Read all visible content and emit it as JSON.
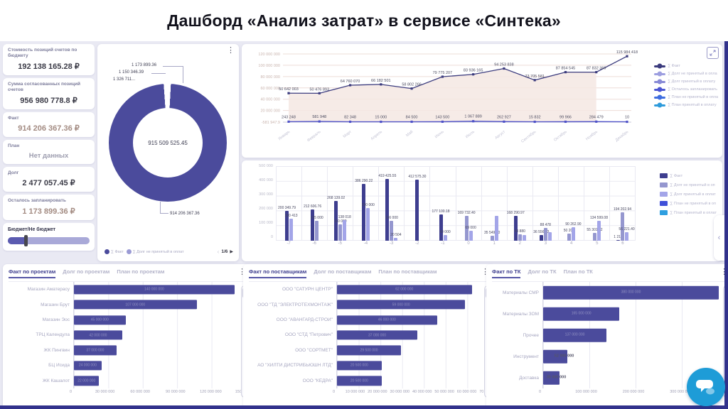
{
  "title": "Дашборд «Анализ затрат» в сервисе «Синтека»",
  "kpi_cards": [
    {
      "label": "Стоимость позиций счетов по бюджету",
      "value": "192 138 165.28 ₽",
      "tone": "dark"
    },
    {
      "label": "Сумма согласованных позиций счетов",
      "value": "956 980 778.8 ₽",
      "tone": "dark"
    },
    {
      "label": "Факт",
      "value": "914 206 367.36 ₽",
      "tone": "muted"
    },
    {
      "label": "План",
      "value": "Нет данных",
      "tone": "empty"
    },
    {
      "label": "Долг",
      "value": "2 477 057.45 ₽",
      "tone": "dark"
    },
    {
      "label": "Осталось запланировать",
      "value": "1 173 899.36 ₽",
      "tone": "muted"
    }
  ],
  "budget_slider": {
    "label": "Бюджет/Не бюджет",
    "position_pct": 22
  },
  "donut_card": {
    "pager": {
      "prev": "‹",
      "page": "1/6",
      "next": "▶"
    }
  },
  "chart_data": [
    {
      "name": "monthly-lines",
      "type": "line",
      "x": [
        "Январь",
        "Февраль",
        "Март",
        "Апрель",
        "Май",
        "Июнь",
        "Июль",
        "Август",
        "Сентябрь",
        "Октябрь",
        "Ноябрь",
        "Декабрь"
      ],
      "y_ticks": [
        "120 000 000",
        "100 000 000",
        "80 000 000",
        "60 000 000",
        "40 000 000",
        "20 000 000"
      ],
      "y_baseline_label": "-581 947.9",
      "ylim": [
        -581947.9,
        120000000
      ],
      "series": [
        {
          "name": "∑ Факт",
          "color": "#3c3c7e",
          "fill": "#f5e7e3",
          "values": [
            50642003,
            50476893,
            64760070,
            66182501,
            58802266,
            79775207,
            83936165,
            94253838,
            73705581,
            87854545,
            87832369,
            115984418
          ],
          "labels": [
            "50 642 003",
            "50 476 893",
            "64 760 070",
            "66 182 501",
            "58 802 266",
            "79 775 207",
            "83 936 165",
            "94 253 838",
            "73 705 581",
            "87 854 545",
            "87 832 369",
            "115 984 418"
          ]
        },
        {
          "name": "∑ План принятый в оплату",
          "color": "#4f52c8",
          "values": [
            243248,
            581948,
            82348,
            15000,
            84500,
            143500,
            1067889,
            262927,
            15832,
            99966,
            284479,
            10
          ],
          "labels": [
            "243 248",
            "581 948",
            "82 348",
            "15 000",
            "84 500",
            "143 500",
            "1 067 889",
            "262 927",
            "15 832",
            "99 966",
            "284 479",
            "10"
          ]
        }
      ],
      "legend": [
        {
          "label": "∑ Факт",
          "color": "#3c3c7e"
        },
        {
          "label": "∑ Долг не принятый в опла",
          "color": "#9d9fe0"
        },
        {
          "label": "∑ Долг принятый в оплату",
          "color": "#8789d6"
        },
        {
          "label": "∑ Осталось запланировать",
          "color": "#4b55d2"
        },
        {
          "label": "∑ План не принятый в опла",
          "color": "#3f6ee0"
        },
        {
          "label": "∑ План принятый в оплату",
          "color": "#2f9bdb"
        }
      ]
    },
    {
      "name": "monthly-bars",
      "type": "bar",
      "y_ticks": [
        "500 000",
        "400 000",
        "300 000",
        "200 000",
        "100 000",
        "0"
      ],
      "ylim": [
        0,
        500000
      ],
      "series": [
        {
          "name": "∑ Факт",
          "color": "#3e3e8f"
        },
        {
          "name": "∑ Долг не принятый в оп",
          "color": "#9597cf"
        },
        {
          "name": "∑ Долг принятый в оплат",
          "color": "#a3a5e8"
        },
        {
          "name": "∑ План не принятый в оп",
          "color": "#4050d8"
        },
        {
          "name": "∑ План принятый в оплат",
          "color": "#2f9fe0"
        }
      ],
      "groups": [
        {
          "cat": "-7",
          "bars": [
            {
              "s": 0,
              "v": 200349.79,
              "t": "200 349.79"
            },
            {
              "s": 2,
              "v": 150413,
              "t": "150 413"
            }
          ]
        },
        {
          "cat": "-6",
          "bars": [
            {
              "s": 0,
              "v": 212606.76,
              "t": "212 606.76"
            },
            {
              "s": 1,
              "v": 135000,
              "t": "135 000"
            }
          ]
        },
        {
          "cat": "-5",
          "bars": [
            {
              "s": 0,
              "v": 268139.02,
              "t": "268 139.02"
            },
            {
              "s": 1,
              "v": 110000,
              "t": "110 000"
            },
            {
              "s": 2,
              "v": 138018,
              "t": "138 018"
            }
          ]
        },
        {
          "cat": "-4",
          "bars": [
            {
              "s": 0,
              "v": 386290.22,
              "t": "386 290.22"
            },
            {
              "s": 2,
              "v": 220000,
              "t": "220 000"
            }
          ]
        },
        {
          "cat": "-3",
          "bars": [
            {
              "s": 0,
              "v": 419425.55,
              "t": "419 425.55"
            },
            {
              "s": 1,
              "v": 136000,
              "t": "136 000"
            },
            {
              "s": 2,
              "v": 20504,
              "t": "20 504"
            }
          ]
        },
        {
          "cat": "-2",
          "bars": [
            {
              "s": 0,
              "v": 412575.3,
              "t": "412 575.30"
            }
          ]
        },
        {
          "cat": "-1",
          "bars": [
            {
              "s": 0,
              "v": 177100.18,
              "t": "177 100.18"
            },
            {
              "s": 2,
              "v": 40000,
              "t": "40 000"
            }
          ]
        },
        {
          "cat": "0",
          "bars": [
            {
              "s": 1,
              "v": 169732.4,
              "t": "169 732.40"
            },
            {
              "s": 2,
              "v": 69000,
              "t": "69 000"
            }
          ]
        },
        {
          "cat": "1",
          "bars": [
            {
              "s": 1,
              "v": 35549.5,
              "t": "35 549.50"
            },
            {
              "s": 2,
              "v": 168000,
              "t": ""
            }
          ]
        },
        {
          "cat": "2",
          "bars": [
            {
              "s": 0,
              "v": 168290.97,
              "t": "168 290.97"
            },
            {
              "s": 1,
              "v": 43880,
              "t": "43 880"
            },
            {
              "s": 2,
              "v": 38000,
              "t": ""
            }
          ]
        },
        {
          "cat": "3",
          "bars": [
            {
              "s": 0,
              "v": 36556.23,
              "t": "36 556.23"
            },
            {
              "s": 1,
              "v": 88478,
              "t": "88 478"
            },
            {
              "s": 2,
              "v": 60000,
              "t": ""
            }
          ]
        },
        {
          "cat": "4",
          "bars": [
            {
              "s": 1,
              "v": 50200,
              "t": "50 200"
            },
            {
              "s": 2,
              "v": 90262.9,
              "t": "90 262.90"
            }
          ]
        },
        {
          "cat": "5",
          "bars": [
            {
              "s": 1,
              "v": 55301.22,
              "t": "55 301.22"
            },
            {
              "s": 2,
              "v": 134599.08,
              "t": "134 599.08"
            }
          ]
        },
        {
          "cat": "6",
          "bars": [
            {
              "s": 0,
              "v": 1212,
              "t": "1 212"
            },
            {
              "s": 1,
              "v": 194202.94,
              "t": "194 202.94"
            },
            {
              "s": 2,
              "v": 56221.4,
              "t": "56 221.40"
            }
          ]
        }
      ]
    },
    {
      "name": "fact-by-projects",
      "type": "bar-horizontal",
      "max": 150000000,
      "axis": [
        "0",
        "30 000 000",
        "60 000 000",
        "90 000 000",
        "120 000 000",
        "150 000 000"
      ],
      "rows": [
        {
          "name": "Магазин Аматерасу",
          "value": 140000000,
          "text": "140 000 000"
        },
        {
          "name": "Магазин Брут",
          "value": 107000000,
          "text": "107 000 000"
        },
        {
          "name": "Магазин Эос",
          "value": 45000000,
          "text": "45 000 000"
        },
        {
          "name": "ТРЦ Календула",
          "value": 42000000,
          "text": "42 000 000"
        },
        {
          "name": "ЖК Пингвин",
          "value": 37000000,
          "text": "37 000 000"
        },
        {
          "name": "БЦ Исида",
          "value": 24000000,
          "text": "24 000 000"
        },
        {
          "name": "ЖК Кашалот",
          "value": 22000000,
          "text": "22 000 000"
        }
      ]
    },
    {
      "name": "fact-by-suppliers",
      "type": "bar-horizontal",
      "max": 70000000,
      "axis": [
        "0",
        "10 000 000",
        "20 000 000",
        "30 000 000",
        "40 000 000",
        "50 000 000",
        "60 000 000",
        "70 000 000"
      ],
      "rows": [
        {
          "name": "ООО \"САТУРН ЦЕНТР\"",
          "value": 62000000,
          "text": "62 000 000"
        },
        {
          "name": "ООО \"ТД \"ЭЛЕКТРОТЕХМОНТАЖ\"",
          "value": 59000000,
          "text": "59 000 000"
        },
        {
          "name": "ООО \"АВАНГАРД-СТРОЙ\"",
          "value": 46000000,
          "text": "46 000 000"
        },
        {
          "name": "ООО \"СТД \"Петрович\"",
          "value": 37000000,
          "text": "37 000 000"
        },
        {
          "name": "ООО \"СОРТМЕТ\"",
          "value": 29500000,
          "text": "29 500 000"
        },
        {
          "name": "АО \"ХИЛТИ ДИСТРИБЬЮШН ЛТД\"",
          "value": 20500000,
          "text": "20 500 000"
        },
        {
          "name": "ООО \"КЕДРА\"",
          "value": 20500000,
          "text": "20 500 000"
        }
      ]
    },
    {
      "name": "fact-by-tk",
      "type": "bar-horizontal",
      "max": 400000000,
      "axis": [
        "0",
        "100 000 000",
        "200 000 000",
        "300 000 000",
        "400 000 000"
      ],
      "rows": [
        {
          "name": "Материалы СМР",
          "value": 380000000,
          "text": "380 000 000"
        },
        {
          "name": "Материалы ЗОМ",
          "value": 165000000,
          "text": "165 000 000"
        },
        {
          "name": "Прочее",
          "value": 137000000,
          "text": "137 000 000"
        },
        {
          "name": "Инструмент",
          "value": 52000000,
          "text": "52 000 000",
          "outside": true
        },
        {
          "name": "Доставка",
          "value": 35000000,
          "text": "35 000 000",
          "outside": true
        }
      ]
    },
    {
      "name": "totals-donut",
      "type": "donut",
      "color": "#4b4b9c",
      "callouts": [
        "1 173 899.36",
        "1 150 346.39",
        "1 326 711..."
      ],
      "center_value": "915 509 525.45",
      "bottom_label": "914 206 367.36",
      "legend": [
        {
          "label": "∑ Факт",
          "color": "#4b4b9c"
        },
        {
          "label": "∑ Долг не принятый в оплат",
          "color": "#9a9ad4"
        }
      ]
    }
  ],
  "panels": [
    {
      "tabs": [
        "Факт по проектам",
        "Долг по проектам",
        "План по проектам"
      ],
      "active": 0,
      "chart": 2
    },
    {
      "tabs": [
        "Факт по поставщикам",
        "Долг по поставщикам",
        "План по поставщикам"
      ],
      "active": 0,
      "chart": 3
    },
    {
      "tabs": [
        "Факт по ТК",
        "Долг по ТК",
        "План по ТК"
      ],
      "active": 0,
      "chart": 4
    }
  ]
}
